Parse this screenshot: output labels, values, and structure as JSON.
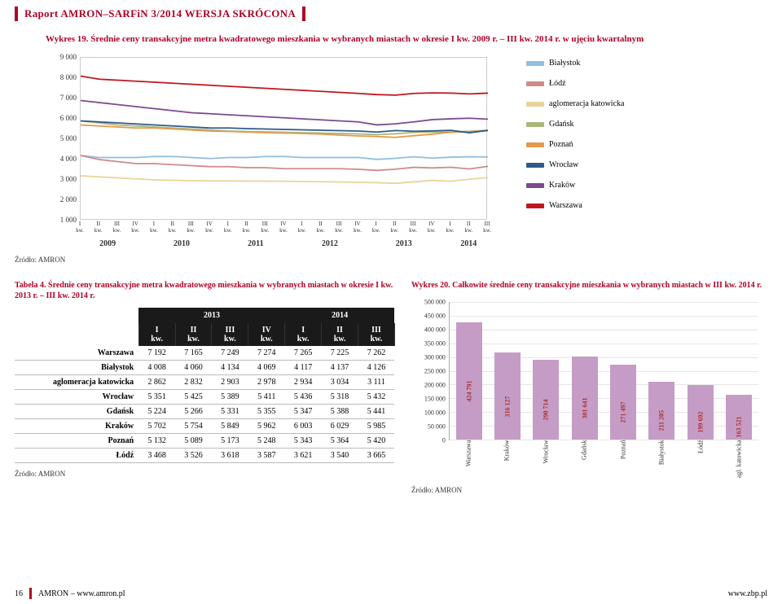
{
  "colors": {
    "accent": "#b10026",
    "grid": "#e6e6e6",
    "axis": "#aaaaaa",
    "table_header_bg": "#1a1a1a",
    "bar_fill": "#c59cc5",
    "bar_value": "#a33"
  },
  "header": {
    "title": "Raport AMRON–SARFiN 3/2014 WERSJA SKRÓCONA"
  },
  "chart19": {
    "title": "Wykres 19. Średnie ceny transakcyjne metra kwadratowego mieszkania w wybranych miastach w okresie I kw. 2009 r. – III kw. 2014 r. w ujęciu kwartalnym",
    "type": "line",
    "ylim": [
      1000,
      9000
    ],
    "ytick_step": 1000,
    "yticks": [
      "9 000",
      "8 000",
      "7 000",
      "6 000",
      "5 000",
      "4 000",
      "3 000",
      "2 000",
      "1 000"
    ],
    "year_labels": [
      "2009",
      "2010",
      "2011",
      "2012",
      "2013",
      "2014"
    ],
    "quarters_per_year": [
      4,
      4,
      4,
      4,
      4,
      3
    ],
    "x_tick_label_top": [
      "I",
      "II",
      "III",
      "IV"
    ],
    "x_tick_label_bottom": "kw.",
    "series": [
      {
        "name": "Białystok",
        "color": "#8fbfe0",
        "values": [
          4200,
          4100,
          4100,
          4100,
          4150,
          4150,
          4100,
          4050,
          4100,
          4100,
          4150,
          4150,
          4100,
          4100,
          4100,
          4100,
          4008,
          4060,
          4134,
          4069,
          4117,
          4137,
          4126
        ]
      },
      {
        "name": "Łódź",
        "color": "#d18a8a",
        "values": [
          4200,
          4000,
          3900,
          3800,
          3800,
          3750,
          3700,
          3650,
          3650,
          3600,
          3600,
          3550,
          3550,
          3550,
          3550,
          3520,
          3468,
          3526,
          3618,
          3587,
          3621,
          3540,
          3665
        ]
      },
      {
        "name": "aglomeracja katowicka",
        "color": "#e8d49b",
        "values": [
          3200,
          3150,
          3100,
          3050,
          3000,
          2980,
          2960,
          2950,
          2950,
          2940,
          2940,
          2930,
          2920,
          2910,
          2900,
          2880,
          2862,
          2832,
          2903,
          2978,
          2934,
          3034,
          3111
        ]
      },
      {
        "name": "Gdańsk",
        "color": "#a7b87a",
        "values": [
          5900,
          5800,
          5700,
          5650,
          5600,
          5550,
          5500,
          5450,
          5400,
          5380,
          5360,
          5340,
          5320,
          5300,
          5280,
          5260,
          5224,
          5266,
          5331,
          5355,
          5347,
          5388,
          5441
        ]
      },
      {
        "name": "Poznań",
        "color": "#e59a4c",
        "values": [
          5700,
          5650,
          5600,
          5550,
          5550,
          5500,
          5450,
          5400,
          5380,
          5350,
          5320,
          5300,
          5280,
          5250,
          5200,
          5160,
          5132,
          5089,
          5173,
          5248,
          5343,
          5364,
          5420
        ]
      },
      {
        "name": "Wrocław",
        "color": "#2f5a8a",
        "values": [
          5900,
          5850,
          5800,
          5750,
          5700,
          5650,
          5600,
          5550,
          5550,
          5520,
          5500,
          5480,
          5460,
          5440,
          5420,
          5400,
          5351,
          5425,
          5389,
          5411,
          5436,
          5318,
          5432
        ]
      },
      {
        "name": "Kraków",
        "color": "#7b4a8f",
        "values": [
          6900,
          6800,
          6700,
          6600,
          6500,
          6400,
          6300,
          6250,
          6200,
          6150,
          6100,
          6050,
          6000,
          5950,
          5900,
          5850,
          5702,
          5754,
          5849,
          5962,
          6003,
          6029,
          5985
        ]
      },
      {
        "name": "Warszawa",
        "color": "#c0171e",
        "values": [
          8100,
          7950,
          7900,
          7850,
          7800,
          7750,
          7700,
          7650,
          7600,
          7550,
          7500,
          7450,
          7400,
          7350,
          7300,
          7250,
          7192,
          7165,
          7249,
          7274,
          7265,
          7225,
          7262
        ]
      }
    ],
    "source": "Źródło: AMRON"
  },
  "table4": {
    "title": "Tabela 4. Średnie ceny transakcyjne metra kwadratowego mieszkania w wybranych miastach w okresie I kw. 2013 r. – III kw. 2014 r.",
    "year_headers": [
      "2013",
      "2014"
    ],
    "columns": [
      "I kw.",
      "II kw.",
      "III kw.",
      "IV kw.",
      "I kw.",
      "II kw.",
      "III kw."
    ],
    "rows": [
      {
        "label": "Warszawa",
        "cells": [
          "7 192",
          "7 165",
          "7 249",
          "7 274",
          "7 265",
          "7 225",
          "7 262"
        ]
      },
      {
        "label": "Białystok",
        "cells": [
          "4 008",
          "4 060",
          "4 134",
          "4 069",
          "4 117",
          "4 137",
          "4 126"
        ]
      },
      {
        "label": "aglomeracja katowicka",
        "cells": [
          "2 862",
          "2 832",
          "2 903",
          "2 978",
          "2 934",
          "3 034",
          "3 111"
        ]
      },
      {
        "label": "Wrocław",
        "cells": [
          "5 351",
          "5 425",
          "5 389",
          "5 411",
          "5 436",
          "5 318",
          "5 432"
        ]
      },
      {
        "label": "Gdańsk",
        "cells": [
          "5 224",
          "5 266",
          "5 331",
          "5 355",
          "5 347",
          "5 388",
          "5 441"
        ]
      },
      {
        "label": "Kraków",
        "cells": [
          "5 702",
          "5 754",
          "5 849",
          "5 962",
          "6 003",
          "6 029",
          "5 985"
        ]
      },
      {
        "label": "Poznań",
        "cells": [
          "5 132",
          "5 089",
          "5 173",
          "5 248",
          "5 343",
          "5 364",
          "5 420"
        ]
      },
      {
        "label": "Łódź",
        "cells": [
          "3 468",
          "3 526",
          "3 618",
          "3 587",
          "3 621",
          "3 540",
          "3 665"
        ]
      }
    ],
    "source": "Źródło: AMRON"
  },
  "chart20": {
    "title": "Wykres 20. Całkowite średnie ceny transakcyjne mieszkania w wybranych miastach w III kw. 2014 r.",
    "type": "bar",
    "ylim": [
      0,
      500000
    ],
    "ytick_step": 50000,
    "yticks": [
      "500 000",
      "450 000",
      "400 000",
      "350 000",
      "300 000",
      "250 000",
      "200 000",
      "150 000",
      "100 000",
      "50 000",
      "0"
    ],
    "categories": [
      "Warszawa",
      "Kraków",
      "Wrocław",
      "Gdańsk",
      "Poznań",
      "Białystok",
      "Łódź",
      "agl. katowicka"
    ],
    "values": [
      424791,
      316127,
      290714,
      301641,
      271497,
      211205,
      199692,
      163521
    ],
    "value_labels": [
      "424 791",
      "316 127",
      "290 714",
      "301 641",
      "271 497",
      "211 205",
      "199 692",
      "163 521"
    ],
    "bar_color": "#c59cc5",
    "source": "Źródło: AMRON"
  },
  "footer": {
    "page": "16",
    "left": "AMRON – www.amron.pl",
    "right": "www.zbp.pl"
  }
}
